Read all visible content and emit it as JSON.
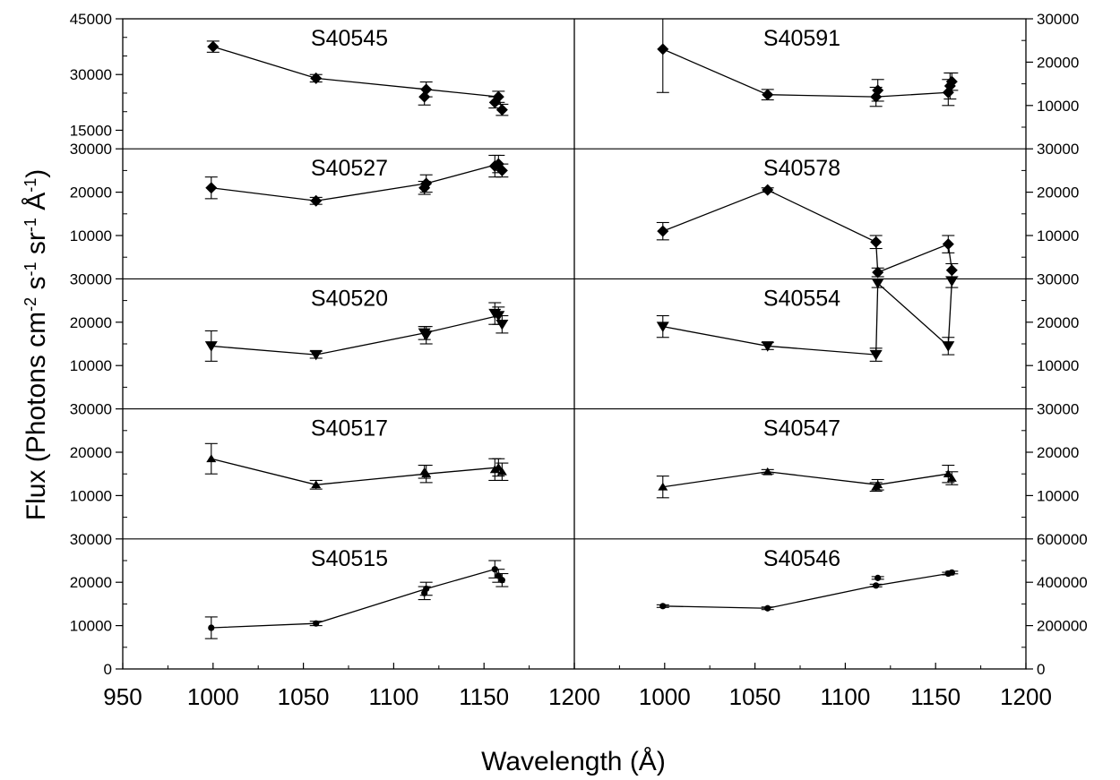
{
  "chart_data": [
    {
      "type": "line",
      "title": "S40545",
      "panel": "left",
      "row": 0,
      "marker": "diamond",
      "ylim": [
        10000,
        45000
      ],
      "yticks": [
        "15000",
        "30000",
        "45000"
      ],
      "minor_step": 5000,
      "points": [
        {
          "x": 1000,
          "y": 37500,
          "err": 1500
        },
        {
          "x": 1057,
          "y": 29000,
          "err": 1000
        },
        {
          "x": 1117,
          "y": 24000,
          "err": 2200
        },
        {
          "x": 1118,
          "y": 26000,
          "err": 2000
        },
        {
          "x": 1156,
          "y": 22500,
          "err": 1500
        },
        {
          "x": 1158,
          "y": 24000,
          "err": 1500
        },
        {
          "x": 1160,
          "y": 20500,
          "err": 1500
        }
      ],
      "line_order": [
        0,
        1,
        3,
        5,
        6
      ]
    },
    {
      "type": "line",
      "title": "S40591",
      "panel": "right",
      "row": 0,
      "marker": "diamond",
      "ylim": [
        0,
        30000
      ],
      "yticks": [
        "10000",
        "20000",
        "30000"
      ],
      "minor_step": 5000,
      "points": [
        {
          "x": 999,
          "y": 23000,
          "err": 10000
        },
        {
          "x": 1057,
          "y": 12500,
          "err": 1200
        },
        {
          "x": 1117,
          "y": 12000,
          "err": 2200
        },
        {
          "x": 1118,
          "y": 13500,
          "err": 2500
        },
        {
          "x": 1157,
          "y": 13000,
          "err": 3000
        },
        {
          "x": 1158,
          "y": 14500,
          "err": 3000
        },
        {
          "x": 1159,
          "y": 15500,
          "err": 2000
        }
      ],
      "line_order": [
        0,
        1,
        2,
        4
      ]
    },
    {
      "type": "line",
      "title": "S40527",
      "panel": "left",
      "row": 1,
      "marker": "diamond",
      "ylim": [
        0,
        30000
      ],
      "yticks": [
        "10000",
        "20000",
        "30000"
      ],
      "minor_step": 5000,
      "points": [
        {
          "x": 999,
          "y": 21000,
          "err": 2500
        },
        {
          "x": 1057,
          "y": 18000,
          "err": 800
        },
        {
          "x": 1117,
          "y": 21000,
          "err": 1500
        },
        {
          "x": 1118,
          "y": 22000,
          "err": 2000
        },
        {
          "x": 1156,
          "y": 26000,
          "err": 2500
        },
        {
          "x": 1158,
          "y": 26500,
          "err": 2000
        },
        {
          "x": 1160,
          "y": 25000,
          "err": 1500
        }
      ],
      "line_order": [
        0,
        1,
        3,
        5
      ]
    },
    {
      "type": "line",
      "title": "S40578",
      "panel": "right",
      "row": 1,
      "marker": "diamond",
      "ylim": [
        0,
        30000
      ],
      "yticks": [
        "10000",
        "20000",
        "30000"
      ],
      "minor_step": 5000,
      "points": [
        {
          "x": 999,
          "y": 11000,
          "err": 2000
        },
        {
          "x": 1057,
          "y": 20500,
          "err": 500
        },
        {
          "x": 1117,
          "y": 8500,
          "err": 1500
        },
        {
          "x": 1118,
          "y": 1500,
          "err": 1000
        },
        {
          "x": 1157,
          "y": 8000,
          "err": 2000
        },
        {
          "x": 1159,
          "y": 2000,
          "err": 1500
        }
      ],
      "line_order": [
        0,
        1,
        2,
        3,
        4,
        5
      ]
    },
    {
      "type": "line",
      "title": "S40520",
      "panel": "left",
      "row": 2,
      "marker": "triangle-down",
      "ylim": [
        0,
        30000
      ],
      "yticks": [
        "10000",
        "20000",
        "30000"
      ],
      "minor_step": 5000,
      "points": [
        {
          "x": 999,
          "y": 14500,
          "err": 3500
        },
        {
          "x": 1057,
          "y": 12500,
          "err": 800
        },
        {
          "x": 1117,
          "y": 17500,
          "err": 1500
        },
        {
          "x": 1118,
          "y": 17000,
          "err": 2000
        },
        {
          "x": 1156,
          "y": 22000,
          "err": 2500
        },
        {
          "x": 1158,
          "y": 21500,
          "err": 2000
        },
        {
          "x": 1160,
          "y": 19500,
          "err": 2000
        }
      ],
      "line_order": [
        0,
        1,
        2,
        5
      ]
    },
    {
      "type": "line",
      "title": "S40554",
      "panel": "right",
      "row": 2,
      "marker": "triangle-down",
      "ylim": [
        0,
        30000
      ],
      "yticks": [
        "10000",
        "20000",
        "30000"
      ],
      "minor_step": 5000,
      "points": [
        {
          "x": 999,
          "y": 19000,
          "err": 2500
        },
        {
          "x": 1057,
          "y": 14500,
          "err": 800
        },
        {
          "x": 1117,
          "y": 12500,
          "err": 1500
        },
        {
          "x": 1118,
          "y": 29000,
          "err": 1000
        },
        {
          "x": 1157,
          "y": 14500,
          "err": 2000
        },
        {
          "x": 1159,
          "y": 29500,
          "err": 1500
        }
      ],
      "line_order": [
        0,
        1,
        2,
        3,
        4,
        5
      ]
    },
    {
      "type": "line",
      "title": "S40517",
      "panel": "left",
      "row": 3,
      "marker": "triangle-up",
      "ylim": [
        0,
        30000
      ],
      "yticks": [
        "10000",
        "20000",
        "30000"
      ],
      "minor_step": 5000,
      "points": [
        {
          "x": 999,
          "y": 18500,
          "err": 3500
        },
        {
          "x": 1057,
          "y": 12500,
          "err": 1000
        },
        {
          "x": 1117,
          "y": 15500,
          "err": 1500
        },
        {
          "x": 1118,
          "y": 15000,
          "err": 2000
        },
        {
          "x": 1156,
          "y": 16000,
          "err": 2500
        },
        {
          "x": 1158,
          "y": 16500,
          "err": 2000
        },
        {
          "x": 1160,
          "y": 15500,
          "err": 2000
        }
      ],
      "line_order": [
        0,
        1,
        3,
        5
      ]
    },
    {
      "type": "line",
      "title": "S40547",
      "panel": "right",
      "row": 3,
      "marker": "triangle-up",
      "ylim": [
        0,
        30000
      ],
      "yticks": [
        "10000",
        "20000",
        "30000"
      ],
      "minor_step": 5000,
      "points": [
        {
          "x": 999,
          "y": 12000,
          "err": 2500
        },
        {
          "x": 1057,
          "y": 15500,
          "err": 500
        },
        {
          "x": 1117,
          "y": 12000,
          "err": 1000
        },
        {
          "x": 1118,
          "y": 12500,
          "err": 1200
        },
        {
          "x": 1157,
          "y": 15000,
          "err": 2000
        },
        {
          "x": 1159,
          "y": 14000,
          "err": 1500
        }
      ],
      "line_order": [
        0,
        1,
        3,
        4
      ]
    },
    {
      "type": "line",
      "title": "S40515",
      "panel": "left",
      "row": 4,
      "marker": "circle",
      "xlabel": "Wavelength (Å)",
      "xlim": [
        950,
        1200
      ],
      "xticks": [
        "950",
        "1000",
        "1050",
        "1100",
        "1150",
        "1200"
      ],
      "ylim": [
        0,
        30000
      ],
      "yticks": [
        "0",
        "10000",
        "20000",
        "30000"
      ],
      "minor_step": 5000,
      "points": [
        {
          "x": 999,
          "y": 9500,
          "err": 2500
        },
        {
          "x": 1057,
          "y": 10500,
          "err": 500
        },
        {
          "x": 1117,
          "y": 17500,
          "err": 1500
        },
        {
          "x": 1118,
          "y": 18500,
          "err": 1500
        },
        {
          "x": 1156,
          "y": 23000,
          "err": 2000
        },
        {
          "x": 1158,
          "y": 21500,
          "err": 1500
        },
        {
          "x": 1160,
          "y": 20500,
          "err": 1500
        }
      ],
      "line_order": [
        0,
        1,
        3,
        4,
        5
      ]
    },
    {
      "type": "line",
      "title": "S40546",
      "panel": "right",
      "row": 4,
      "marker": "circle",
      "xlabel": "Wavelength (Å)",
      "xlim": [
        950,
        1200
      ],
      "xticks": [
        "1000",
        "1050",
        "1100",
        "1150",
        "1200"
      ],
      "ylim": [
        0,
        600000
      ],
      "yticks": [
        "0",
        "200000",
        "400000",
        "600000"
      ],
      "minor_step": 100000,
      "points": [
        {
          "x": 999,
          "y": 290000,
          "err": 6000
        },
        {
          "x": 1057,
          "y": 280000,
          "err": 6000
        },
        {
          "x": 1117,
          "y": 385000,
          "err": 6000
        },
        {
          "x": 1118,
          "y": 420000,
          "err": 6000
        },
        {
          "x": 1157,
          "y": 440000,
          "err": 6000
        },
        {
          "x": 1159,
          "y": 445000,
          "err": 6000
        }
      ],
      "line_order": [
        0,
        1,
        2,
        4,
        5
      ]
    }
  ],
  "ylabel_main": "Flux (Photons cm",
  "ylabel_sup1": "-2",
  "ylabel_mid1": " s",
  "ylabel_sup2": "-1",
  "ylabel_mid2": " sr",
  "ylabel_sup3": "-1",
  "ylabel_mid3": " Å",
  "ylabel_sup4": "-1",
  "ylabel_end": ")",
  "xlabel": "Wavelength (Å)"
}
